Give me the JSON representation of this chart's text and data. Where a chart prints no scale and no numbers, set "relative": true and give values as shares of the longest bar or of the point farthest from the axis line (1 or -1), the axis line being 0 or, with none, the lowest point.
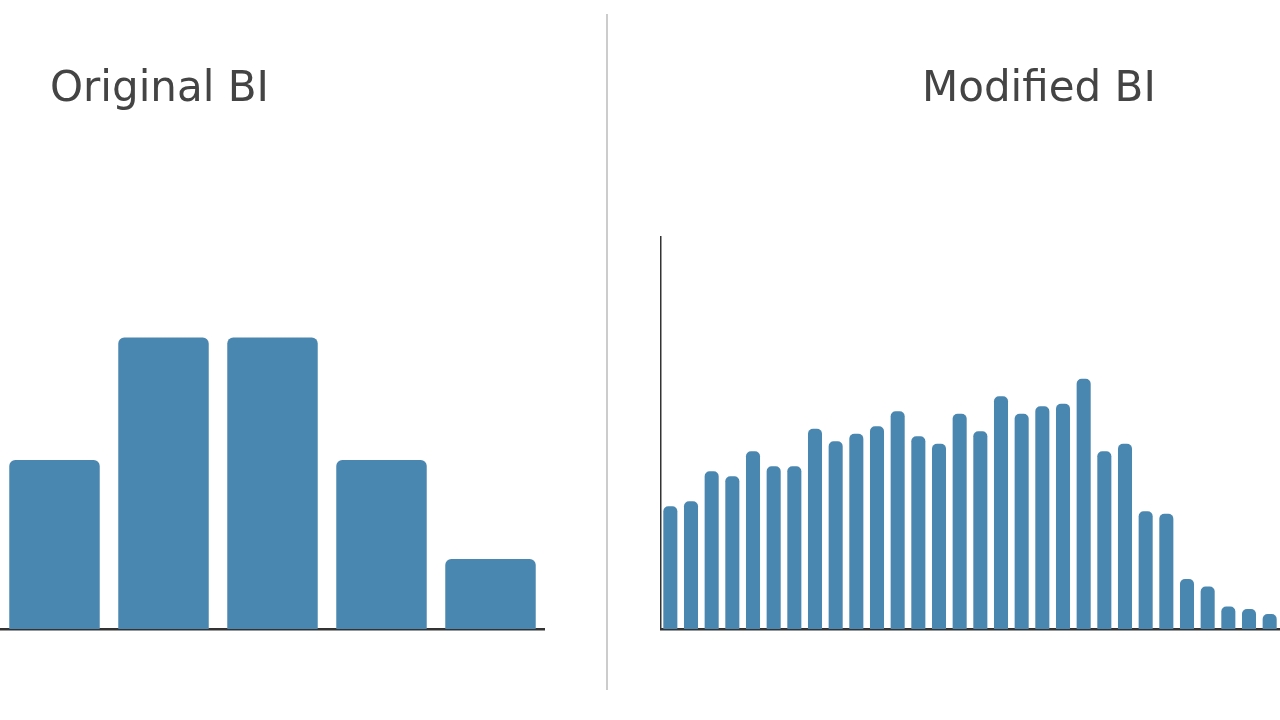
{
  "chart_data": [
    {
      "type": "bar",
      "title": "Original BI",
      "relative": true,
      "color": "#4a87b0",
      "categories": [
        null,
        null,
        null,
        null,
        null
      ],
      "values": [
        0.58,
        1,
        1,
        0.58,
        0.24
      ]
    },
    {
      "type": "bar",
      "title": "Modified BI",
      "relative": true,
      "color": "#4a87b0",
      "categories": [
        null,
        null,
        null,
        null,
        null,
        null,
        null,
        null,
        null,
        null,
        null,
        null,
        null,
        null,
        null,
        null,
        null,
        null,
        null,
        null,
        null,
        null,
        null,
        null,
        null,
        null,
        null,
        null,
        null,
        null
      ],
      "values": [
        0.49,
        0.51,
        0.63,
        0.61,
        0.71,
        0.65,
        0.65,
        0.8,
        0.75,
        0.78,
        0.81,
        0.87,
        0.77,
        0.74,
        0.86,
        0.79,
        0.93,
        0.86,
        0.89,
        0.9,
        1,
        0.71,
        0.74,
        0.47,
        0.46,
        0.2,
        0.17,
        0.09,
        0.08,
        0.06
      ]
    }
  ]
}
